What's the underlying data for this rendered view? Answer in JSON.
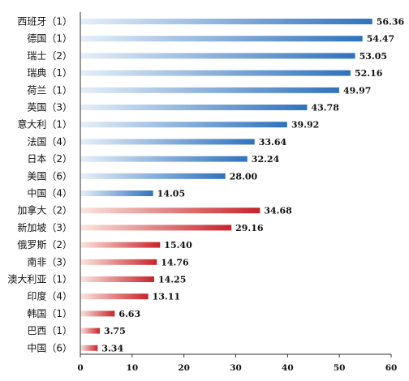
{
  "chart_data": {
    "type": "bar",
    "orientation": "horizontal",
    "categories": [
      "西班牙（1）",
      "德国（1）",
      "瑞士（2）",
      "瑞典（1）",
      "荷兰（1）",
      "英国（3）",
      "意大利（1）",
      "法国（4）",
      "日本（2）",
      "美国（6）",
      "中国（4）",
      "加拿大（2）",
      "新加坡（3）",
      "俄罗斯（2）",
      "南非（3）",
      "澳大利亚（1）",
      "印度（4）",
      "韩国（1）",
      "巴西（1）",
      "中国（6）"
    ],
    "values": [
      56.36,
      54.47,
      53.05,
      52.16,
      49.97,
      43.78,
      39.92,
      33.64,
      32.24,
      28.0,
      14.05,
      34.68,
      29.16,
      15.4,
      14.76,
      14.25,
      13.11,
      6.63,
      3.75,
      3.34
    ],
    "value_labels": [
      "56.36",
      "54.47",
      "53.05",
      "52.16",
      "49.97",
      "43.78",
      "39.92",
      "33.64",
      "32.24",
      "28.00",
      "14.05",
      "34.68",
      "29.16",
      "15.40",
      "14.76",
      "14.25",
      "13.11",
      "6.63",
      "3.75",
      "3.34"
    ],
    "groups": [
      "blue",
      "blue",
      "blue",
      "blue",
      "blue",
      "blue",
      "blue",
      "blue",
      "blue",
      "blue",
      "blue",
      "red",
      "red",
      "red",
      "red",
      "red",
      "red",
      "red",
      "red",
      "red"
    ],
    "colors": {
      "blue": {
        "start": "#e6eff9",
        "end": "#2f72bd"
      },
      "red": {
        "start": "#fbe6e0",
        "end": "#c8232a"
      }
    },
    "xlim": [
      0,
      60
    ],
    "xticks": [
      "0",
      "10",
      "20",
      "30",
      "40",
      "50",
      "60"
    ],
    "title": "",
    "xlabel": "",
    "ylabel": "",
    "grid": false,
    "legend": "none"
  }
}
